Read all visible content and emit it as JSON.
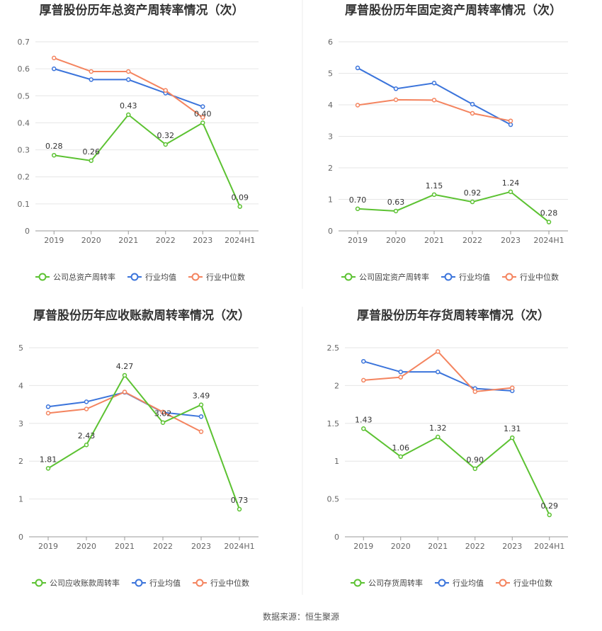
{
  "source": "数据来源：恒生聚源",
  "colors": {
    "company": "#5cc232",
    "avg": "#3b74db",
    "median": "#f4845f",
    "grid": "#e6e6e6",
    "axis": "#999999"
  },
  "chart_data": [
    {
      "type": "line",
      "title": "厚普股份历年总资产周转率情况（次）",
      "categories": [
        "2019",
        "2020",
        "2021",
        "2022",
        "2023",
        "2024H1"
      ],
      "ylim": [
        0,
        0.7
      ],
      "yticks": [
        "0",
        "0.1",
        "0.2",
        "0.3",
        "0.4",
        "0.5",
        "0.6",
        "0.7"
      ],
      "series": [
        {
          "name": "公司总资产周转率",
          "values": [
            0.28,
            0.26,
            0.43,
            0.32,
            0.4,
            0.09
          ],
          "labels": [
            "0.28",
            "0.26",
            "0.43",
            "0.32",
            "0.40",
            "0.09"
          ]
        },
        {
          "name": "行业均值",
          "values": [
            0.6,
            0.56,
            0.56,
            0.51,
            0.46,
            null
          ]
        },
        {
          "name": "行业中位数",
          "values": [
            0.64,
            0.59,
            0.59,
            0.52,
            0.42,
            null
          ]
        }
      ]
    },
    {
      "type": "line",
      "title": "厚普股份历年固定资产周转率情况（次）",
      "categories": [
        "2019",
        "2020",
        "2021",
        "2022",
        "2023",
        "2024H1"
      ],
      "ylim": [
        0,
        6
      ],
      "yticks": [
        "0",
        "1",
        "2",
        "3",
        "4",
        "5",
        "6"
      ],
      "series": [
        {
          "name": "公司固定资产周转率",
          "values": [
            0.7,
            0.63,
            1.15,
            0.92,
            1.24,
            0.28
          ],
          "labels": [
            "0.70",
            "0.63",
            "1.15",
            "0.92",
            "1.24",
            "0.28"
          ]
        },
        {
          "name": "行业均值",
          "values": [
            5.17,
            4.51,
            4.69,
            4.02,
            3.37,
            null
          ]
        },
        {
          "name": "行业中位数",
          "values": [
            3.99,
            4.16,
            4.15,
            3.73,
            3.49,
            null
          ]
        }
      ]
    },
    {
      "type": "line",
      "title": "厚普股份历年应收账款周转率情况（次）",
      "categories": [
        "2019",
        "2020",
        "2021",
        "2022",
        "2023",
        "2024H1"
      ],
      "ylim": [
        0,
        5
      ],
      "yticks": [
        "0",
        "1",
        "2",
        "3",
        "4",
        "5"
      ],
      "series": [
        {
          "name": "公司应收账款周转率",
          "values": [
            1.81,
            2.43,
            4.27,
            3.02,
            3.49,
            0.73
          ],
          "labels": [
            "1.81",
            "2.43",
            "4.27",
            "3.02",
            "3.49",
            "0.73"
          ]
        },
        {
          "name": "行业均值",
          "values": [
            3.44,
            3.57,
            3.82,
            3.29,
            3.18,
            null
          ]
        },
        {
          "name": "行业中位数",
          "values": [
            3.27,
            3.38,
            3.83,
            3.3,
            2.78,
            null
          ]
        }
      ]
    },
    {
      "type": "line",
      "title": "厚普股份历年存货周转率情况（次）",
      "categories": [
        "2019",
        "2020",
        "2021",
        "2022",
        "2023",
        "2024H1"
      ],
      "ylim": [
        0,
        2.5
      ],
      "yticks": [
        "0",
        "0.5",
        "1",
        "1.5",
        "2",
        "2.5"
      ],
      "series": [
        {
          "name": "公司存货周转率",
          "values": [
            1.43,
            1.06,
            1.32,
            0.9,
            1.31,
            0.29
          ],
          "labels": [
            "1.43",
            "1.06",
            "1.32",
            "0.90",
            "1.31",
            "0.29"
          ]
        },
        {
          "name": "行业均值",
          "values": [
            2.32,
            2.18,
            2.18,
            1.96,
            1.93,
            null
          ]
        },
        {
          "name": "行业中位数",
          "values": [
            2.07,
            2.11,
            2.45,
            1.92,
            1.97,
            null
          ]
        }
      ]
    }
  ]
}
